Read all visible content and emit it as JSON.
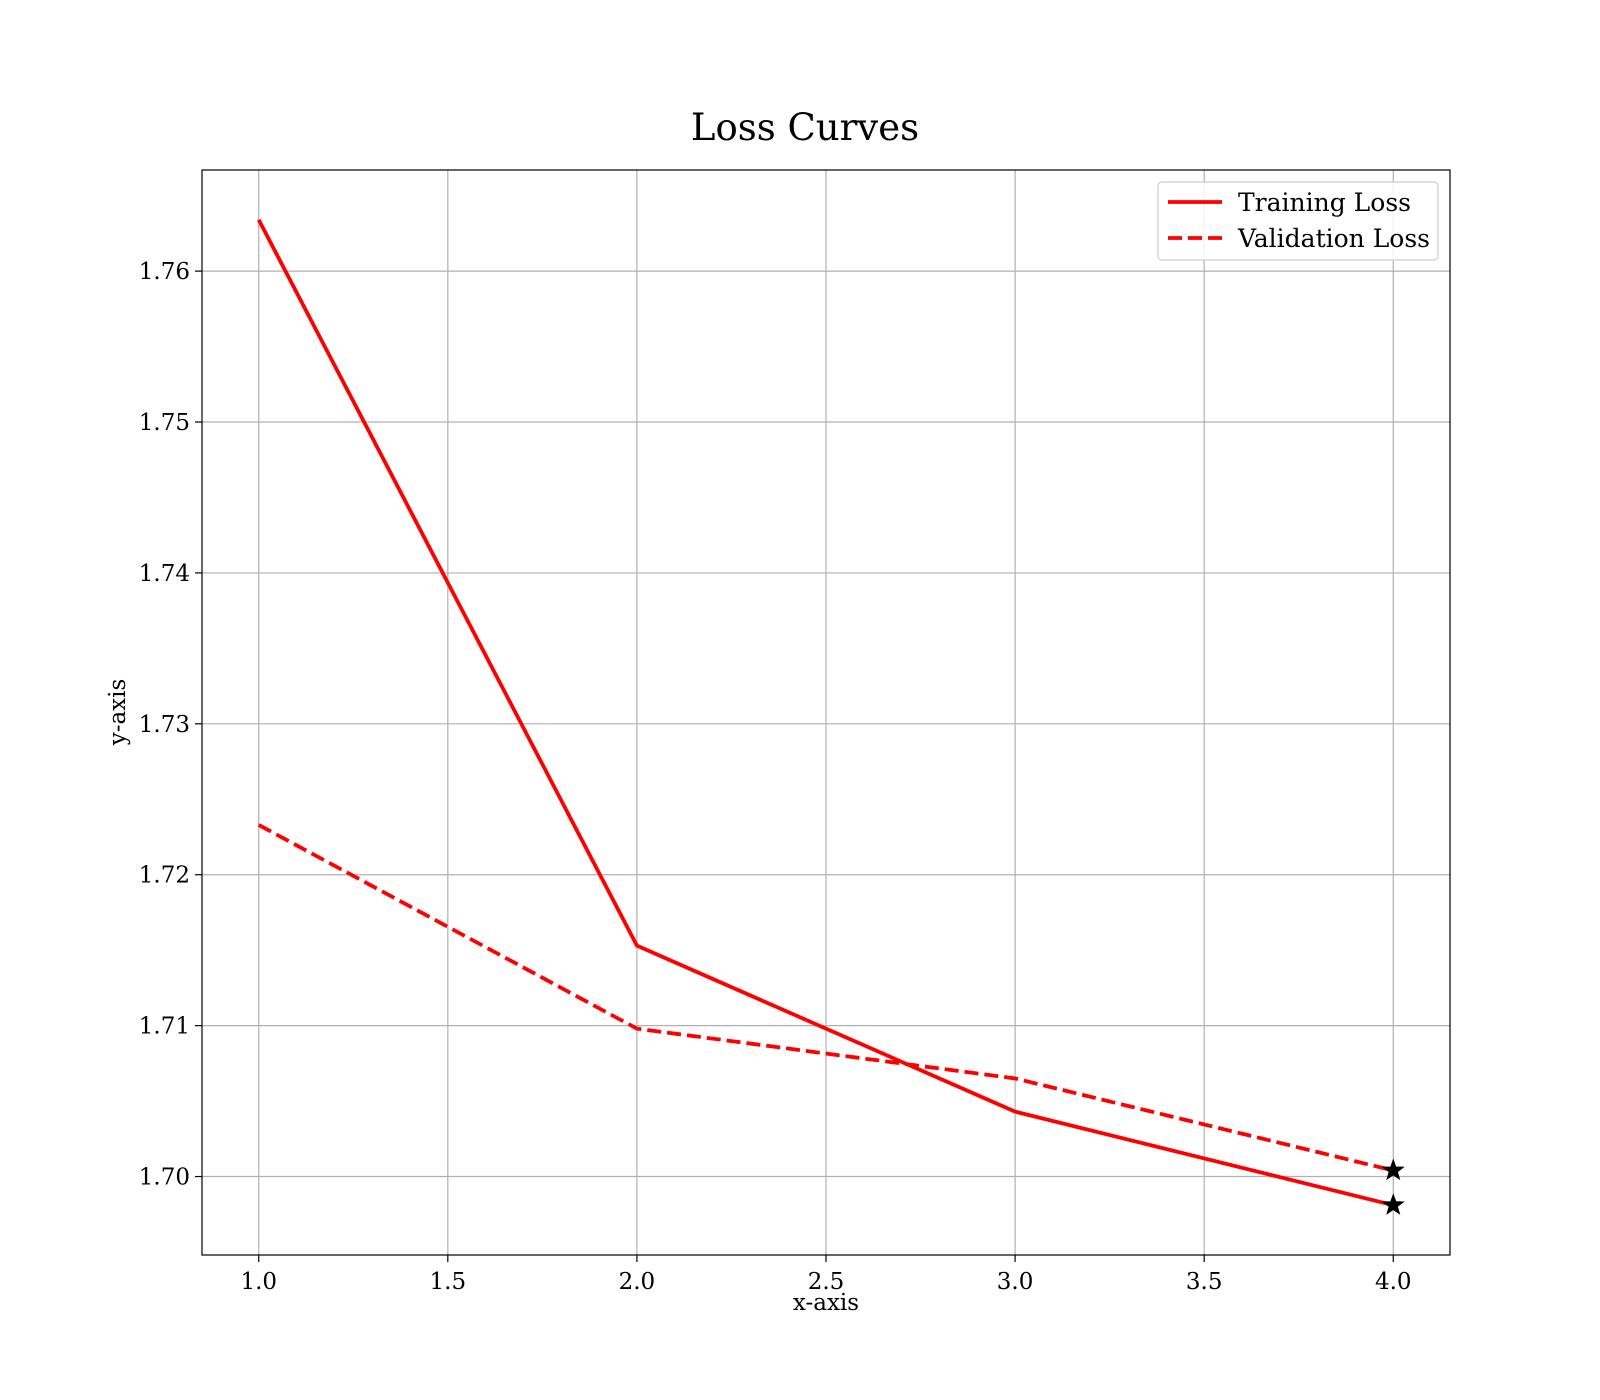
{
  "chart_data": {
    "type": "line",
    "title": "Loss Curves",
    "xlabel": "x-axis",
    "ylabel": "y-axis",
    "x": [
      1.0,
      2.0,
      3.0,
      4.0
    ],
    "series": [
      {
        "name": "Training Loss",
        "values": [
          1.7634,
          1.7153,
          1.7043,
          1.6981
        ],
        "color": "#ff0000",
        "line_style": "solid",
        "end_marker": "star"
      },
      {
        "name": "Validation Loss",
        "values": [
          1.7233,
          1.7098,
          1.7065,
          1.7004
        ],
        "color": "#ff0000",
        "line_style": "dashed",
        "end_marker": "star"
      }
    ],
    "xlim": [
      0.85,
      4.15
    ],
    "ylim": [
      1.6948,
      1.7667
    ],
    "x_ticks": [
      1.0,
      1.5,
      2.0,
      2.5,
      3.0,
      3.5,
      4.0
    ],
    "x_tick_labels": [
      "1.0",
      "1.5",
      "2.0",
      "2.5",
      "3.0",
      "3.5",
      "4.0"
    ],
    "y_ticks": [
      1.7,
      1.71,
      1.72,
      1.73,
      1.74,
      1.75,
      1.76
    ],
    "y_tick_labels": [
      "1.70",
      "1.71",
      "1.72",
      "1.73",
      "1.74",
      "1.75",
      "1.76"
    ],
    "grid": true,
    "legend_position": "top-right",
    "marker_color": "#000000"
  }
}
